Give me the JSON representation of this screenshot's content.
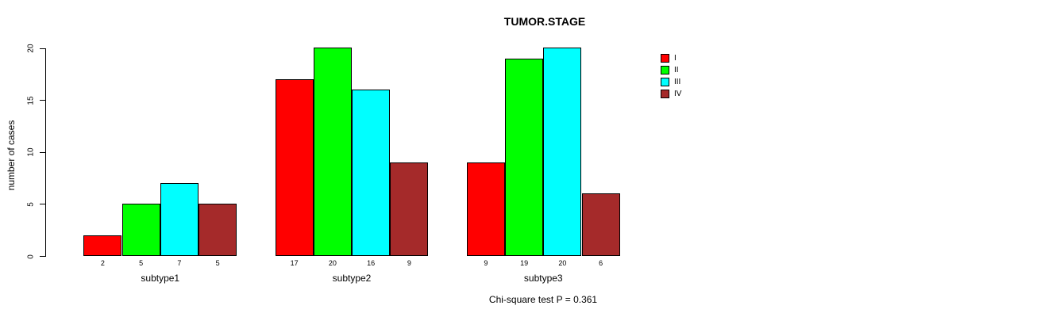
{
  "title": "TUMOR.STAGE",
  "y_axis_label": "number of cases",
  "footnote": "Chi-square test P = 0.361",
  "chart_data": {
    "type": "bar",
    "title": "TUMOR.STAGE",
    "xlabel": "",
    "ylabel": "number of cases",
    "categories": [
      "subtype1",
      "subtype2",
      "subtype3"
    ],
    "series": [
      {
        "name": "I",
        "color": "#ff0000",
        "values": [
          2,
          17,
          9
        ]
      },
      {
        "name": "II",
        "color": "#00ff00",
        "values": [
          5,
          20,
          19
        ]
      },
      {
        "name": "III",
        "color": "#00ffff",
        "values": [
          7,
          16,
          20
        ]
      },
      {
        "name": "IV",
        "color": "#a52a2a",
        "values": [
          5,
          9,
          6
        ]
      }
    ],
    "bar_value_labels": [
      [
        "2",
        "5",
        "7",
        "5"
      ],
      [
        "17",
        "20",
        "16",
        "9"
      ],
      [
        "9",
        "19",
        "20",
        "6"
      ]
    ],
    "yticks": [
      "0",
      "5",
      "10",
      "15",
      "20"
    ],
    "ylim": [
      0,
      20
    ],
    "grid": false,
    "legend_position": "right",
    "legend_entries": [
      "I",
      "II",
      "III",
      "IV"
    ],
    "annotation": "Chi-square test P = 0.361"
  }
}
